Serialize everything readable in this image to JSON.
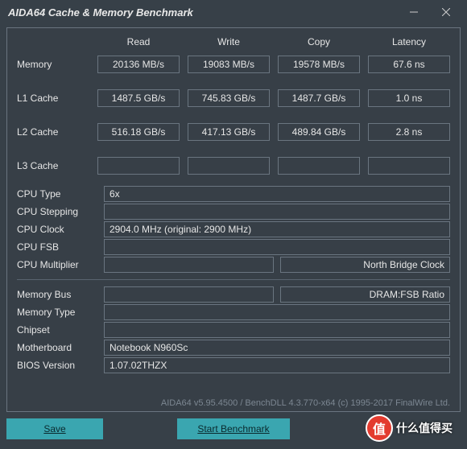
{
  "window": {
    "title": "AIDA64 Cache & Memory Benchmark",
    "bg_color": "#374048",
    "border_color": "#6a7580",
    "text_color": "#e6e6e6"
  },
  "columns": [
    "Read",
    "Write",
    "Copy",
    "Latency"
  ],
  "rows": [
    {
      "label": "Memory",
      "read": "20136 MB/s",
      "write": "19083 MB/s",
      "copy": "19578 MB/s",
      "latency": "67.6 ns"
    },
    {
      "label": "L1 Cache",
      "read": "1487.5 GB/s",
      "write": "745.83 GB/s",
      "copy": "1487.7 GB/s",
      "latency": "1.0 ns"
    },
    {
      "label": "L2 Cache",
      "read": "516.18 GB/s",
      "write": "417.13 GB/s",
      "copy": "489.84 GB/s",
      "latency": "2.8 ns"
    },
    {
      "label": "L3 Cache",
      "read": "",
      "write": "",
      "copy": "",
      "latency": ""
    }
  ],
  "info1": [
    {
      "label": "CPU Type",
      "value": "6x",
      "wide": true
    },
    {
      "label": "CPU Stepping",
      "value": "",
      "wide": true
    },
    {
      "label": "CPU Clock",
      "value": "2904.0 MHz  (original: 2900 MHz)",
      "wide": true
    },
    {
      "label": "CPU FSB",
      "value": "",
      "wide": true
    },
    {
      "label": "CPU Multiplier",
      "value": "",
      "right_label": "North Bridge Clock",
      "right_value": ""
    }
  ],
  "info2": [
    {
      "label": "Memory Bus",
      "value": "",
      "right_label": "DRAM:FSB Ratio",
      "right_value": ""
    },
    {
      "label": "Memory Type",
      "value": "",
      "wide": true
    },
    {
      "label": "Chipset",
      "value": "",
      "wide": true
    },
    {
      "label": "Motherboard",
      "value": "Notebook N960Sc",
      "wide": true
    },
    {
      "label": "BIOS Version",
      "value": "1.07.02THZX",
      "wide": true
    }
  ],
  "footer": "AIDA64 v5.95.4500 / BenchDLL 4.3.770-x64  (c) 1995-2017 FinalWire Ltd.",
  "buttons": {
    "save": "Save",
    "start": "Start Benchmark"
  },
  "button_color": "#3aa6b0",
  "watermark": {
    "badge": "值",
    "text": "什么值得买"
  }
}
